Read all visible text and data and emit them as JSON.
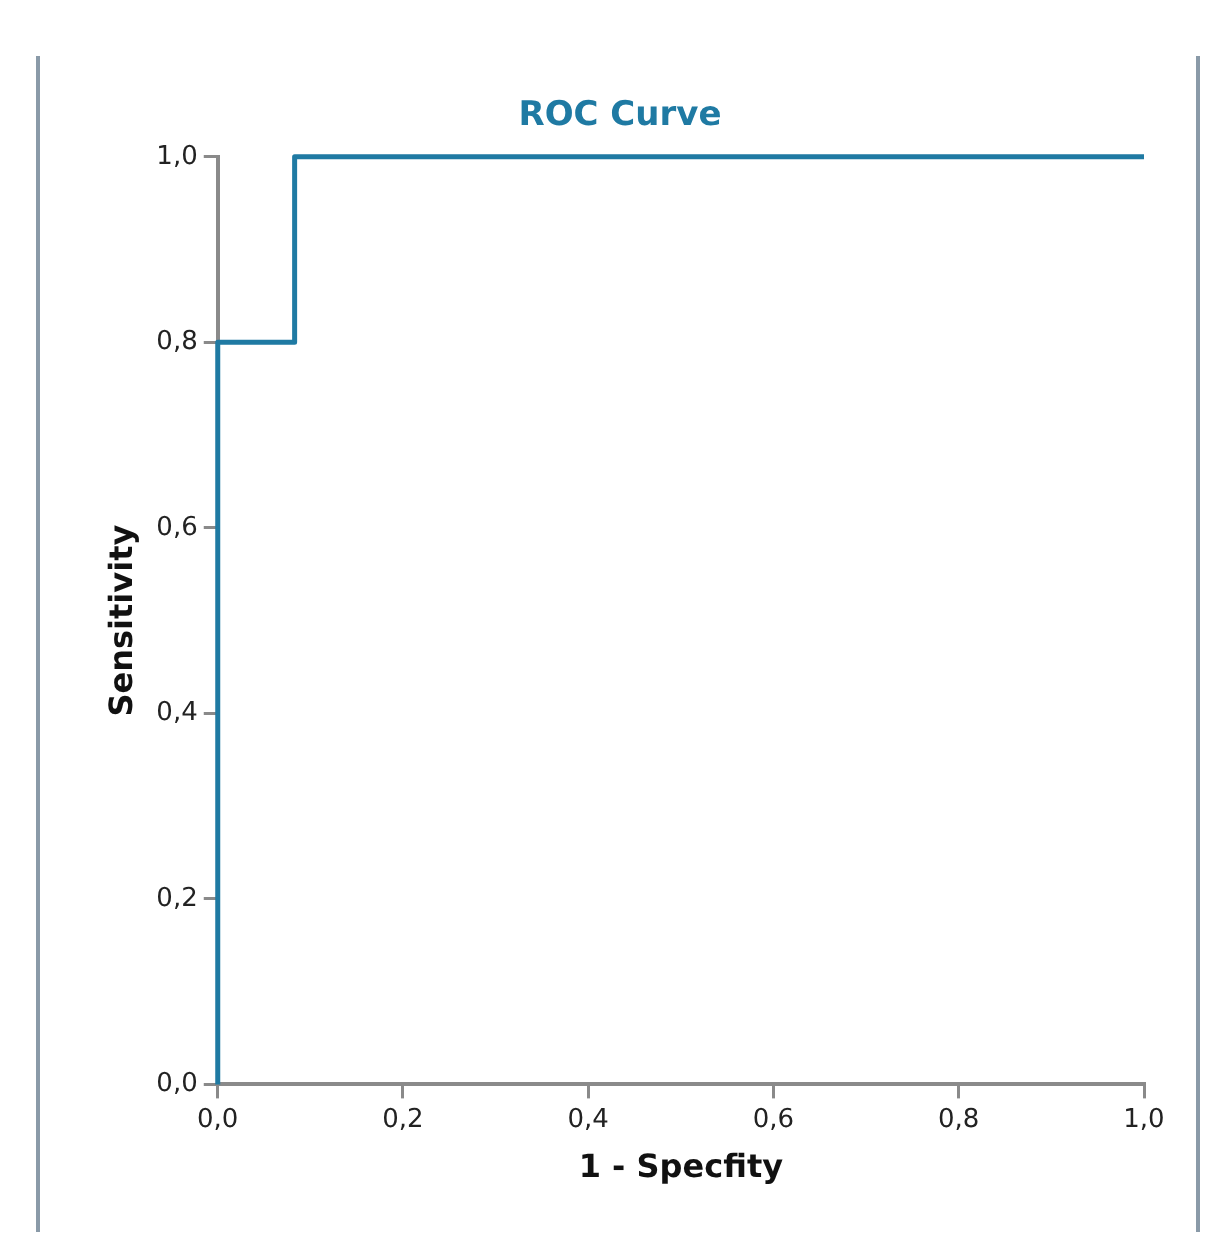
{
  "chart_data": {
    "type": "line",
    "title": "ROC Curve",
    "xlabel": "1 - Specfity",
    "ylabel": "Sensitivity",
    "series": [
      {
        "color": "#1f7aa3",
        "x": [
          0,
          0,
          0.083,
          0.083,
          1
        ],
        "values": [
          0,
          0.8,
          0.8,
          1,
          1
        ]
      }
    ],
    "xlim": [
      0,
      1
    ],
    "ylim": [
      0,
      1
    ],
    "xticks": [
      {
        "value": 0,
        "label": "0,0"
      },
      {
        "value": 0.2,
        "label": "0,2"
      },
      {
        "value": 0.4,
        "label": "0,4"
      },
      {
        "value": 0.6,
        "label": "0,6"
      },
      {
        "value": 0.8,
        "label": "0,8"
      },
      {
        "value": 1,
        "label": "1,0"
      }
    ],
    "yticks": [
      {
        "value": 0,
        "label": "0,0"
      },
      {
        "value": 0.2,
        "label": "0,2"
      },
      {
        "value": 0.4,
        "label": "0,4"
      },
      {
        "value": 0.6,
        "label": "0,6"
      },
      {
        "value": 0.8,
        "label": "0,8"
      },
      {
        "value": 1,
        "label": "1,0"
      }
    ],
    "grid": false,
    "legend": false,
    "marker": "none",
    "line_style": "solid"
  }
}
